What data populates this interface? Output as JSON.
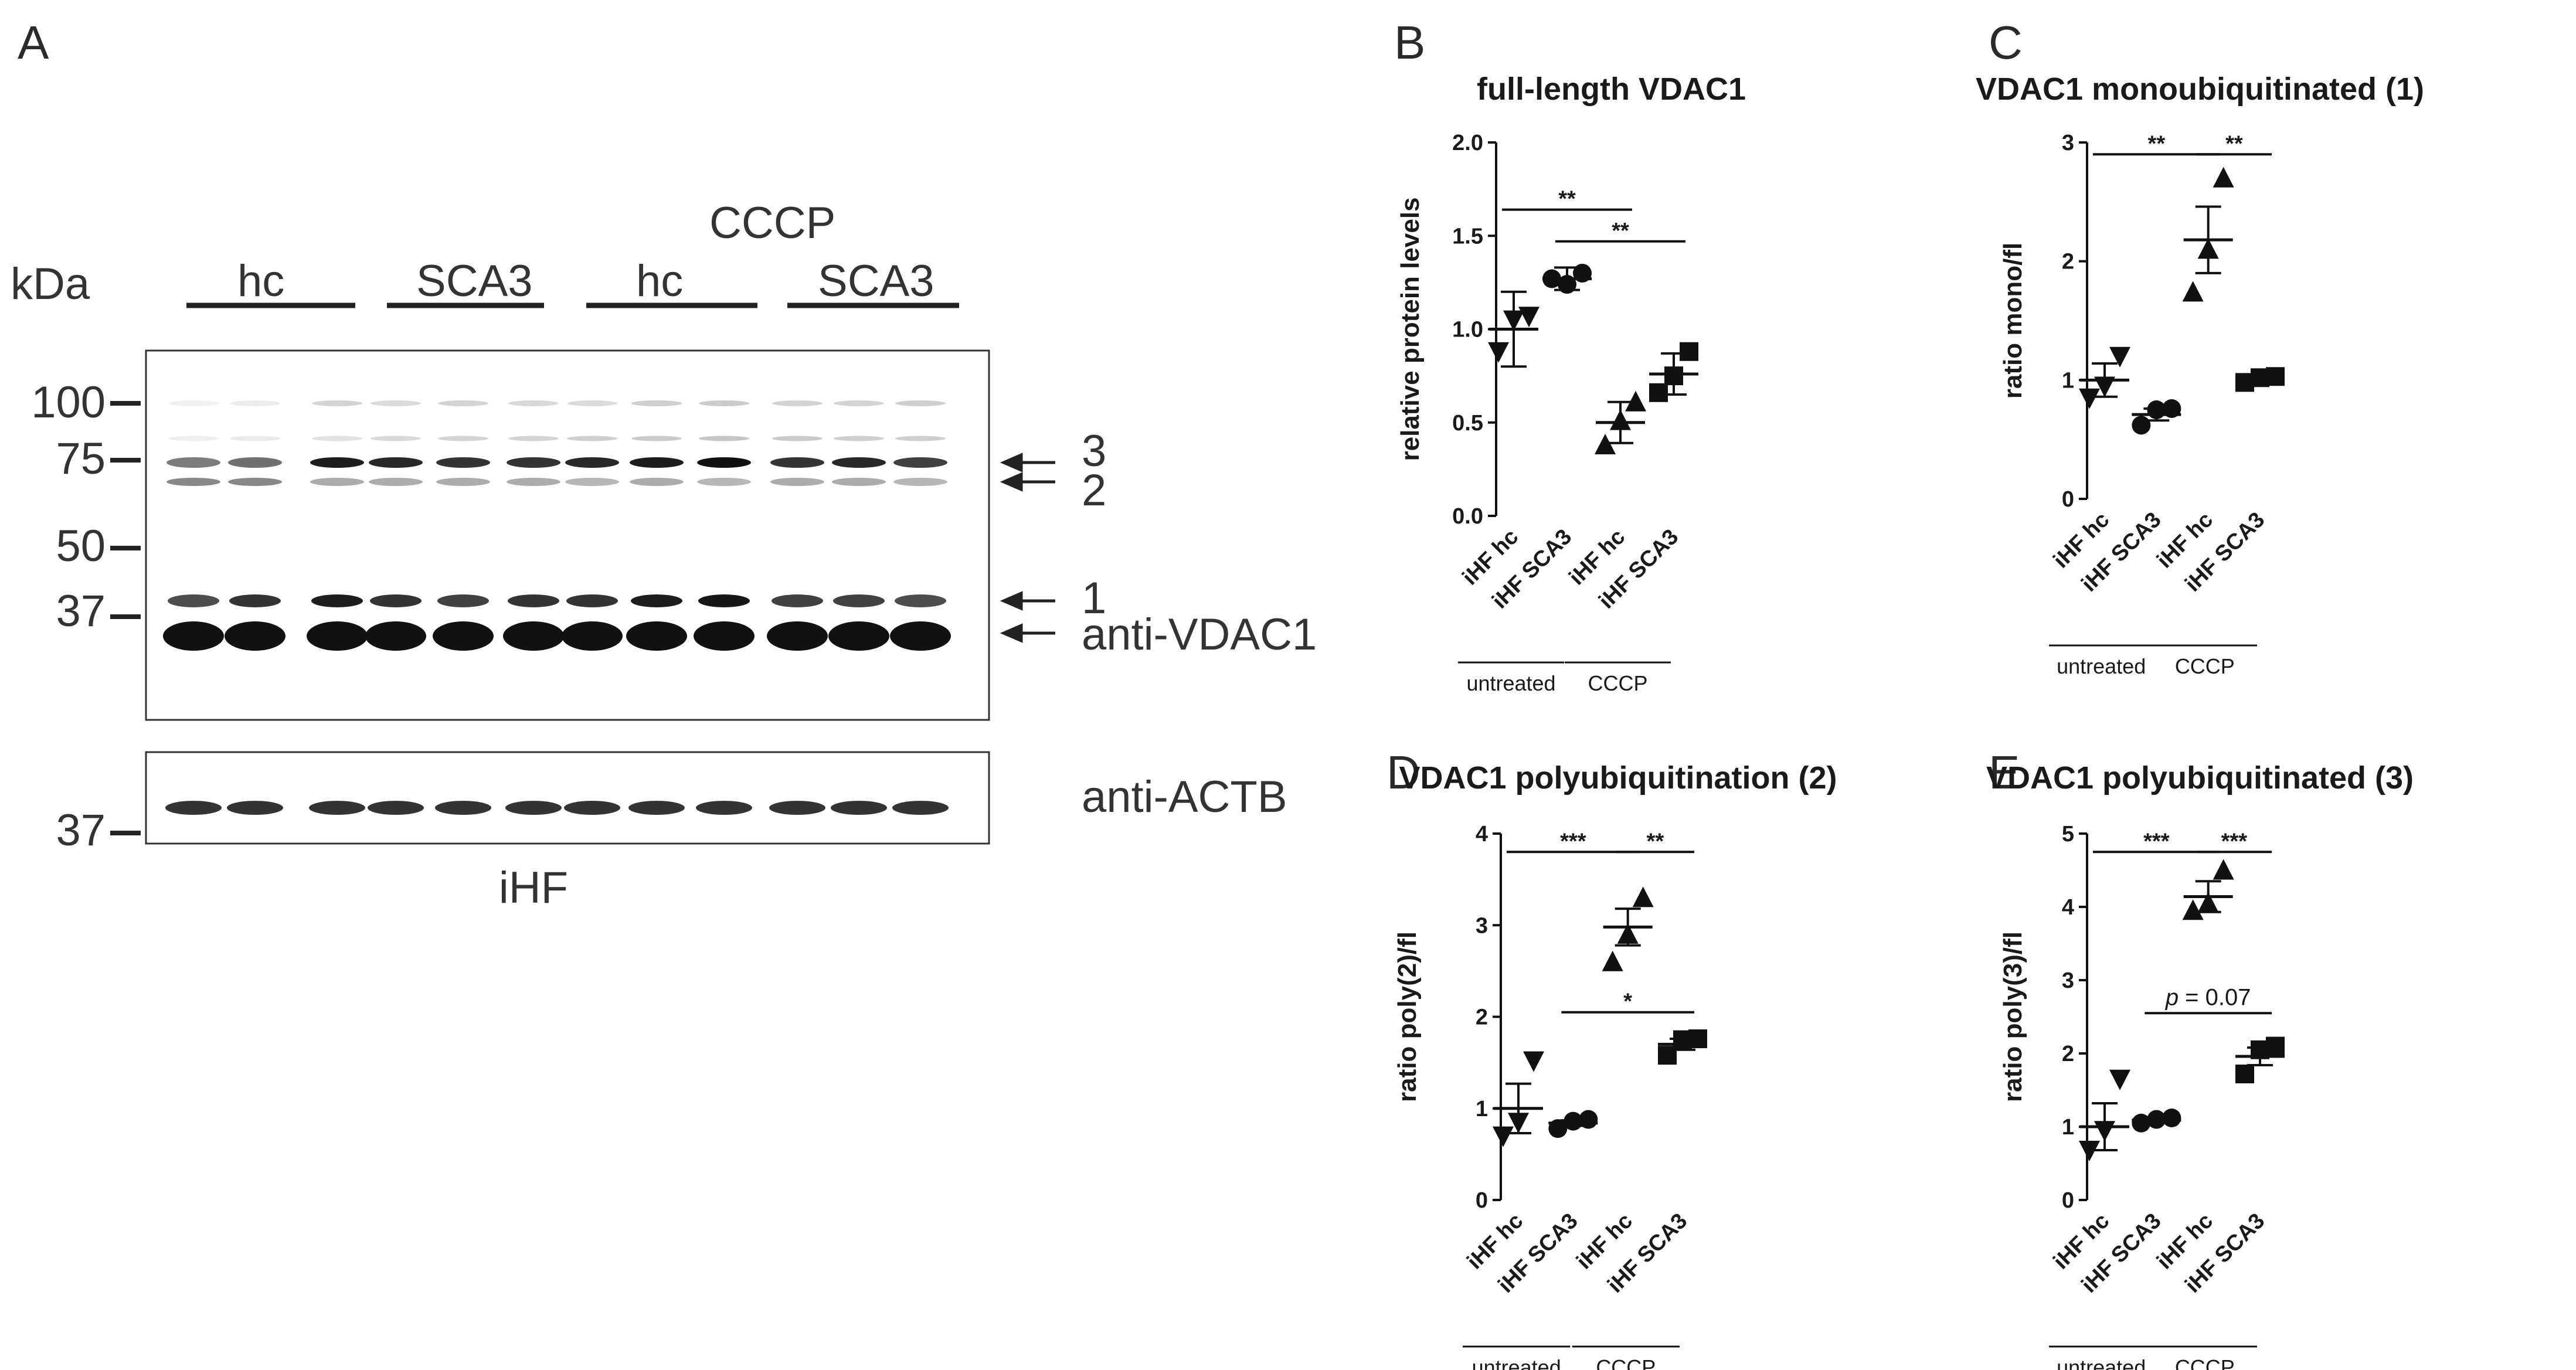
{
  "panel_a": {
    "letter": "A",
    "kda_label": "kDa",
    "treatment_label": "CCCP",
    "lane_groups": [
      "hc",
      "SCA3",
      "hc",
      "SCA3"
    ],
    "main_markers": [
      "100",
      "75",
      "50",
      "37"
    ],
    "actb_marker": "37",
    "arrow_labels": [
      "3",
      "2",
      "1",
      "anti-VDAC1"
    ],
    "actb_label": "anti-ACTB",
    "cell_type": "iHF"
  },
  "chart_data": [
    {
      "type": "scatter",
      "panel": "B",
      "title": "full-length VDAC1",
      "ylabel": "relative protein levels",
      "ylim": [
        0,
        2.0
      ],
      "yticks": [
        "0.0",
        "0.5",
        "1.0",
        "1.5",
        "2.0"
      ],
      "categories": [
        "iHF hc",
        "iHF SCA3",
        "iHF hc",
        "iHF SCA3"
      ],
      "groups": [
        "untreated",
        "CCCP"
      ],
      "markers": [
        "triangle-down",
        "circle",
        "triangle-up",
        "square"
      ],
      "points": [
        [
          0.88,
          1.05,
          1.07
        ],
        [
          1.27,
          1.24,
          1.3
        ],
        [
          0.38,
          0.51,
          0.61
        ],
        [
          0.66,
          0.75,
          0.88
        ]
      ],
      "means": [
        1.0,
        1.27,
        0.5,
        0.76
      ],
      "sem": [
        0.2,
        0.06,
        0.11,
        0.11
      ],
      "significance": [
        {
          "from": 0,
          "to": 2,
          "label": "**",
          "y": 1.64
        },
        {
          "from": 1,
          "to": 3,
          "label": "**",
          "y": 1.47
        }
      ]
    },
    {
      "type": "scatter",
      "panel": "C",
      "title": "VDAC1 monoubiquitinated (1)",
      "ylabel": "ratio mono/fl",
      "ylim": [
        0,
        3
      ],
      "yticks": [
        "0",
        "1",
        "2",
        "3"
      ],
      "categories": [
        "iHF hc",
        "iHF SCA3",
        "iHF hc",
        "iHF SCA3"
      ],
      "groups": [
        "untreated",
        "CCCP"
      ],
      "markers": [
        "triangle-down",
        "circle",
        "triangle-up",
        "square"
      ],
      "points": [
        [
          0.85,
          0.95,
          1.2
        ],
        [
          0.62,
          0.75,
          0.76
        ],
        [
          1.74,
          2.1,
          2.7
        ],
        [
          0.98,
          1.02,
          1.03
        ]
      ],
      "means": [
        1.0,
        0.71,
        2.18,
        1.01
      ],
      "sem": [
        0.14,
        0.05,
        0.28,
        0.02
      ],
      "significance": [
        {
          "from": 0,
          "to": 2,
          "label": "**",
          "y": 2.9
        },
        {
          "from": 2,
          "to": 3,
          "label": "**",
          "y": 2.9
        }
      ]
    },
    {
      "type": "scatter",
      "panel": "D",
      "title": "VDAC1 polyubiquitination (2)",
      "ylabel": "ratio poly(2)/fl",
      "ylim": [
        0,
        4
      ],
      "yticks": [
        "0",
        "1",
        "2",
        "3",
        "4"
      ],
      "categories": [
        "iHF hc",
        "iHF SCA3",
        "iHF hc",
        "iHF SCA3"
      ],
      "groups": [
        "untreated",
        "CCCP"
      ],
      "markers": [
        "triangle-down",
        "circle",
        "triangle-up",
        "square"
      ],
      "points": [
        [
          0.7,
          0.85,
          1.52
        ],
        [
          0.78,
          0.86,
          0.88
        ],
        [
          2.6,
          2.9,
          3.3
        ],
        [
          1.58,
          1.75,
          1.76
        ]
      ],
      "means": [
        1.0,
        0.84,
        2.98,
        1.7
      ],
      "sem": [
        0.27,
        0.03,
        0.2,
        0.06
      ],
      "significance": [
        {
          "from": 0,
          "to": 2,
          "label": "***",
          "y": 3.8
        },
        {
          "from": 2,
          "to": 3,
          "label": "**",
          "y": 3.8
        },
        {
          "from": 1,
          "to": 3,
          "label": "*",
          "y": 2.05
        }
      ]
    },
    {
      "type": "scatter",
      "panel": "E",
      "title": "VDAC1 polyubiquitinated (3)",
      "ylabel": "ratio poly(3)/fl",
      "ylim": [
        0,
        5
      ],
      "yticks": [
        "0",
        "1",
        "2",
        "3",
        "4",
        "5"
      ],
      "categories": [
        "iHF hc",
        "iHF SCA3",
        "iHF hc",
        "iHF SCA3"
      ],
      "groups": [
        "untreated",
        "CCCP"
      ],
      "markers": [
        "triangle-down",
        "circle",
        "triangle-up",
        "square"
      ],
      "points": [
        [
          0.68,
          0.95,
          1.65
        ],
        [
          1.05,
          1.1,
          1.12
        ],
        [
          3.95,
          4.05,
          4.5
        ],
        [
          1.72,
          2.05,
          2.1
        ]
      ],
      "means": [
        1.0,
        1.09,
        4.14,
        1.96
      ],
      "sem": [
        0.32,
        0.02,
        0.21,
        0.12
      ],
      "significance": [
        {
          "from": 0,
          "to": 2,
          "label": "***",
          "y": 4.75
        },
        {
          "from": 2,
          "to": 3,
          "label": "***",
          "y": 4.75
        },
        {
          "from": 1,
          "to": 3,
          "label": "p = 0.07",
          "y": 2.55
        }
      ]
    }
  ]
}
